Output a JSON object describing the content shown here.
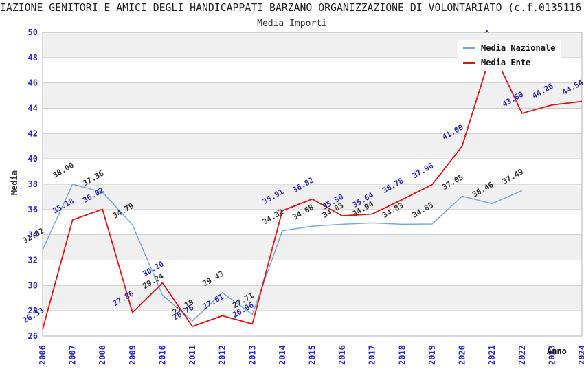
{
  "header": {
    "title": "IAZIONE GENITORI E AMICI DEGLI HANDICAPPATI BARZANO ORGANIZZAZIONE DI VOLONTARIATO (c.f.0135116",
    "subtitle": "Media Importi"
  },
  "legend": {
    "items": [
      {
        "label": "Media Nazionale",
        "color": "#74a9dc"
      },
      {
        "label": "Media Ente",
        "color": "#e01212"
      }
    ]
  },
  "colors": {
    "band": "#f0f0f0",
    "grid": "#cccccc",
    "plot_border": "#b3b3b3",
    "axis_tick": "#2a2ac8",
    "nazionale_line": "#74a9dc",
    "ente_line": "#e01212",
    "nazionale_label": "#333333",
    "ente_label": "#2b2bb0"
  },
  "chart_data": {
    "type": "line",
    "title": "Media Importi",
    "x": [
      2006,
      2007,
      2008,
      2009,
      2010,
      2011,
      2012,
      2013,
      2014,
      2015,
      2016,
      2017,
      2018,
      2019,
      2020,
      2021,
      2022,
      2023,
      2024
    ],
    "xlabel": "Anno",
    "ylabel": "Media",
    "ylim": [
      26,
      50
    ],
    "ytick_step": 2,
    "yticks": [
      26,
      28,
      30,
      32,
      34,
      36,
      38,
      40,
      42,
      44,
      46,
      48,
      50
    ],
    "grid": true,
    "legend_position": "top-right",
    "clipped_label_tip": "^",
    "series": [
      {
        "name": "Media Nazionale",
        "color": "#74a9dc",
        "label_color": "#333333",
        "values": [
          32.82,
          38.0,
          37.36,
          34.79,
          29.24,
          27.19,
          29.43,
          27.71,
          34.32,
          34.68,
          34.83,
          34.94,
          34.83,
          34.85,
          37.05,
          36.46,
          37.49,
          null,
          null
        ],
        "labels": [
          "32.82",
          "38.00",
          "37.36",
          "34.79",
          "29.24",
          "27.19",
          "29.43",
          "27.71",
          "34.32",
          "34.68",
          "34.83",
          "34.94",
          "34.83",
          "34.85",
          "37.05",
          "36.46",
          "37.49",
          "",
          ""
        ]
      },
      {
        "name": "Media Ente",
        "color": "#e01212",
        "label_color": "#2b2bb0",
        "values": [
          26.53,
          35.18,
          36.02,
          27.86,
          30.2,
          26.76,
          27.61,
          26.96,
          35.91,
          36.82,
          35.5,
          35.64,
          36.78,
          37.96,
          41.0,
          48.6,
          43.6,
          44.26,
          44.54
        ],
        "labels": [
          "26.53",
          "35.18",
          "36.02",
          "27.86",
          "30.20",
          "26.76",
          "27.61",
          "26.96",
          "35.91",
          "36.82",
          "35.50",
          "35.64",
          "36.78",
          "37.96",
          "41.00",
          "",
          "43.60",
          "44.26",
          "44.54"
        ]
      }
    ]
  }
}
